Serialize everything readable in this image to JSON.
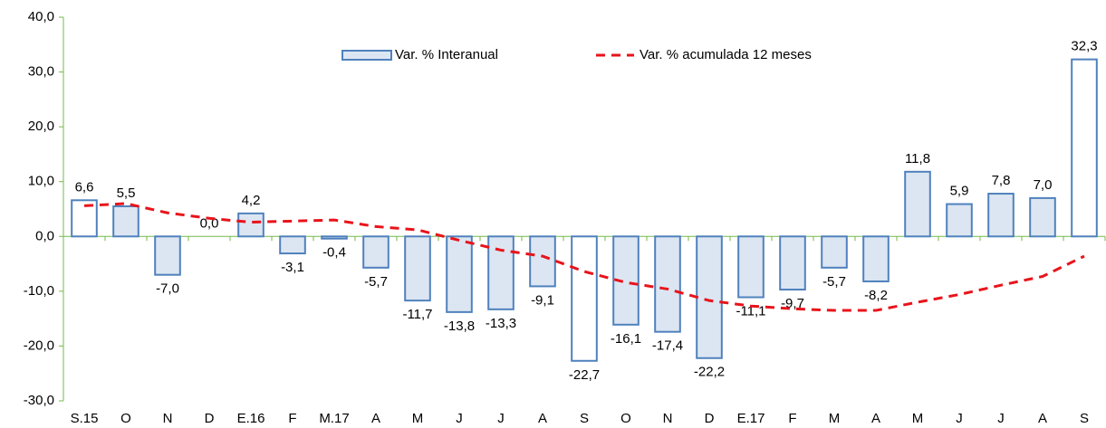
{
  "chart_data": {
    "type": "bar",
    "categories": [
      "S.15",
      "O",
      "N",
      "D",
      "E.16",
      "F",
      "M.17",
      "A",
      "M",
      "J",
      "J",
      "A",
      "S",
      "O",
      "N",
      "D",
      "E.17",
      "F",
      "M",
      "A",
      "M",
      "J",
      "J",
      "A",
      "S"
    ],
    "series": [
      {
        "name": "Var. % Interanual",
        "type": "bar",
        "color": "#dce6f2",
        "stroke": "#4f81bd",
        "bar_colors": [
          "#ffffff",
          "#dce6f2",
          "#dce6f2",
          "#ffffff",
          "#dce6f2",
          "#dce6f2",
          "#dce6f2",
          "#dce6f2",
          "#dce6f2",
          "#dce6f2",
          "#dce6f2",
          "#dce6f2",
          "#ffffff",
          "#dce6f2",
          "#dce6f2",
          "#dce6f2",
          "#dce6f2",
          "#dce6f2",
          "#dce6f2",
          "#dce6f2",
          "#dce6f2",
          "#dce6f2",
          "#dce6f2",
          "#dce6f2",
          "#ffffff"
        ],
        "values": [
          6.6,
          5.5,
          -7.0,
          0.0,
          4.2,
          -3.1,
          -0.4,
          -5.7,
          -11.7,
          -13.8,
          -13.3,
          -9.1,
          -22.7,
          -16.1,
          -17.4,
          -22.2,
          -11.1,
          -9.7,
          -5.7,
          -8.2,
          11.8,
          5.9,
          7.8,
          7.0,
          32.3
        ],
        "value_labels": [
          "6,6",
          "5,5",
          "-7,0",
          "0,0",
          "4,2",
          "-3,1",
          "-0,4",
          "-5,7",
          "-11,7",
          "-13,8",
          "-13,3",
          "-9,1",
          "-22,7",
          "-16,1",
          "-17,4",
          "-22,2",
          "-11,1",
          "-9,7",
          "-5,7",
          "-8,2",
          "11,8",
          "5,9",
          "7,8",
          "7,0",
          "32,3"
        ]
      },
      {
        "name": "Var. % acumulada 12 meses",
        "type": "line",
        "color": "#e8141b",
        "dashed": true,
        "values": [
          5.6,
          6.0,
          4.3,
          3.3,
          2.6,
          2.8,
          3.0,
          1.8,
          1.2,
          -0.7,
          -2.5,
          -3.6,
          -6.4,
          -8.4,
          -9.6,
          -11.7,
          -12.7,
          -13.2,
          -13.5,
          -13.5,
          -12.0,
          -10.6,
          -8.9,
          -7.3,
          -3.6
        ]
      }
    ],
    "ylim": [
      -30,
      40
    ],
    "yticks": [
      {
        "value": -30,
        "label": "-30,0"
      },
      {
        "value": -20,
        "label": "-20,0"
      },
      {
        "value": -10,
        "label": "-10,0"
      },
      {
        "value": 0,
        "label": "0,0"
      },
      {
        "value": 10,
        "label": "10,0"
      },
      {
        "value": 20,
        "label": "20,0"
      },
      {
        "value": 30,
        "label": "30,0"
      },
      {
        "value": 40,
        "label": "40,0"
      }
    ],
    "axis_color": "#77b94a",
    "legend": "top"
  }
}
